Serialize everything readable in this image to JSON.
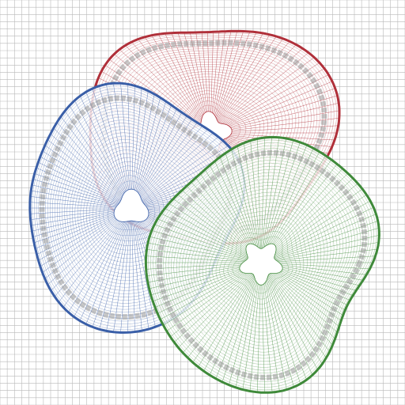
{
  "figure": {
    "background_color": "#ffffff",
    "background_grid": {
      "color": "#b9b9b9",
      "cell_count": 56
    },
    "meshes": [
      {
        "name": "red-mesh",
        "color": "#b0303a",
        "inner_hole": "4-lobed",
        "inner_lobes": 4
      },
      {
        "name": "blue-mesh",
        "color": "#3a5fa8",
        "inner_hole": "3-lobed",
        "inner_lobes": 3
      },
      {
        "name": "green-mesh",
        "color": "#3f8a3a",
        "inner_hole": "5-lobed",
        "inner_lobes": 5
      }
    ],
    "overlap_band_color": "#999999"
  }
}
